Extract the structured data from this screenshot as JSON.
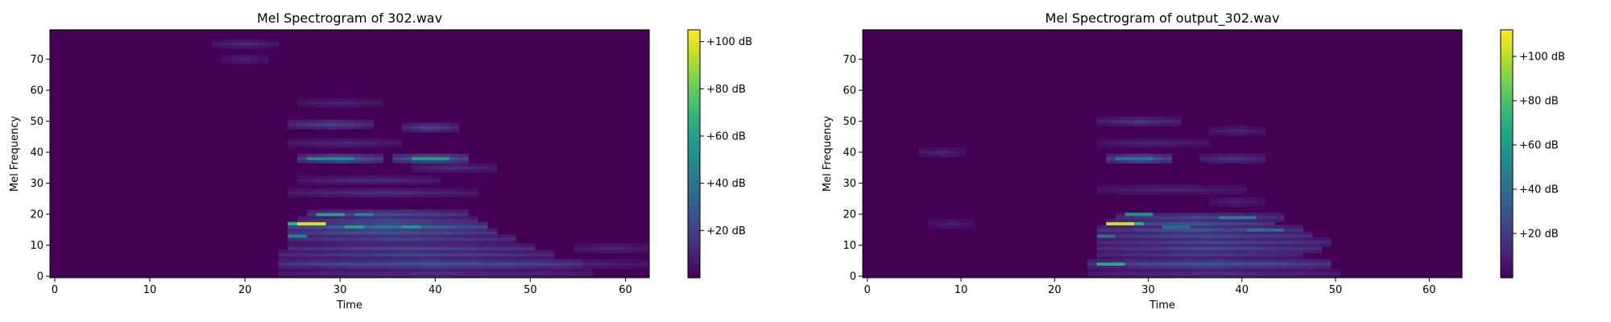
{
  "chart_data": [
    {
      "type": "heatmap",
      "title": "Mel Spectrogram of 302.wav",
      "xlabel": "Time",
      "ylabel": "Mel Frequency",
      "xlim": [
        -0.5,
        62.5
      ],
      "ylim": [
        -0.5,
        79.5
      ],
      "xticks": [
        0,
        10,
        20,
        30,
        40,
        50,
        60
      ],
      "yticks": [
        0,
        10,
        20,
        30,
        40,
        50,
        60,
        70
      ],
      "colormap": "viridis",
      "colorbar": {
        "min": 0,
        "max": 105,
        "ticks": [
          20,
          40,
          60,
          80,
          100
        ],
        "tick_labels": [
          "+20 dB",
          "+40 dB",
          "+60 dB",
          "+80 dB",
          "+100 dB"
        ]
      },
      "features": [
        {
          "t": [
            24,
            56
          ],
          "bin": 1,
          "level": 15
        },
        {
          "t": [
            24,
            55
          ],
          "bin": 4,
          "level": 30
        },
        {
          "t": [
            24,
            52
          ],
          "bin": 7,
          "level": 22
        },
        {
          "t": [
            25,
            50
          ],
          "bin": 9,
          "level": 24
        },
        {
          "t": [
            25,
            48
          ],
          "bin": 12,
          "level": 22
        },
        {
          "t": [
            25,
            46
          ],
          "bin": 14,
          "level": 28
        },
        {
          "t": [
            25,
            45
          ],
          "bin": 16,
          "level": 40
        },
        {
          "t": [
            26,
            44
          ],
          "bin": 18,
          "level": 22
        },
        {
          "t": [
            27,
            43
          ],
          "bin": 20,
          "level": 26
        },
        {
          "t": [
            26,
            34
          ],
          "bin": 38,
          "level": 35
        },
        {
          "t": [
            36,
            43
          ],
          "bin": 38,
          "level": 38
        },
        {
          "t": [
            25,
            33
          ],
          "bin": 49,
          "level": 22
        },
        {
          "t": [
            37,
            42
          ],
          "bin": 48,
          "level": 22
        },
        {
          "t": [
            25,
            44
          ],
          "bin": 27,
          "level": 14
        },
        {
          "t": [
            26,
            40
          ],
          "bin": 31,
          "level": 13
        },
        {
          "t": [
            25,
            36
          ],
          "bin": 43,
          "level": 12
        },
        {
          "t": [
            38,
            46
          ],
          "bin": 35,
          "level": 14
        },
        {
          "t": [
            26,
            34
          ],
          "bin": 56,
          "level": 10
        },
        {
          "t": [
            17,
            23
          ],
          "bin": 75,
          "level": 12
        },
        {
          "t": [
            18,
            22
          ],
          "bin": 70,
          "level": 10
        },
        {
          "t": [
            55,
            62
          ],
          "bin": 9,
          "level": 12
        },
        {
          "t": [
            52,
            62
          ],
          "bin": 4,
          "level": 10
        }
      ],
      "hotspots": [
        {
          "t": [
            26,
            28
          ],
          "bin": 17,
          "level": 100
        },
        {
          "t": [
            25,
            26
          ],
          "bin": 17,
          "level": 65
        },
        {
          "t": [
            28,
            30
          ],
          "bin": 20,
          "level": 60
        },
        {
          "t": [
            31,
            32
          ],
          "bin": 16,
          "level": 60
        },
        {
          "t": [
            37,
            38
          ],
          "bin": 16,
          "level": 55
        },
        {
          "t": [
            38,
            41
          ],
          "bin": 38,
          "level": 58
        },
        {
          "t": [
            27,
            31
          ],
          "bin": 38,
          "level": 50
        },
        {
          "t": [
            25,
            26
          ],
          "bin": 13,
          "level": 45
        },
        {
          "t": [
            32,
            33
          ],
          "bin": 20,
          "level": 48
        }
      ]
    },
    {
      "type": "heatmap",
      "title": "Mel Spectrogram of output_302.wav",
      "xlabel": "Time",
      "ylabel": "Mel Frequency",
      "xlim": [
        -0.5,
        63.5
      ],
      "ylim": [
        -0.5,
        79.5
      ],
      "xticks": [
        0,
        10,
        20,
        30,
        40,
        50,
        60
      ],
      "yticks": [
        0,
        10,
        20,
        30,
        40,
        50,
        60,
        70
      ],
      "colormap": "viridis",
      "colorbar": {
        "min": 0,
        "max": 112,
        "ticks": [
          20,
          40,
          60,
          80,
          100
        ],
        "tick_labels": [
          "+20 dB",
          "+40 dB",
          "+60 dB",
          "+80 dB",
          "+100 dB"
        ]
      },
      "features": [
        {
          "t": [
            24,
            50
          ],
          "bin": 1,
          "level": 16
        },
        {
          "t": [
            24,
            49
          ],
          "bin": 4,
          "level": 32
        },
        {
          "t": [
            25,
            46
          ],
          "bin": 7,
          "level": 20
        },
        {
          "t": [
            25,
            48
          ],
          "bin": 9,
          "level": 26
        },
        {
          "t": [
            25,
            49
          ],
          "bin": 11,
          "level": 24
        },
        {
          "t": [
            25,
            47
          ],
          "bin": 13,
          "level": 26
        },
        {
          "t": [
            25,
            46
          ],
          "bin": 15,
          "level": 30
        },
        {
          "t": [
            26,
            43
          ],
          "bin": 17,
          "level": 30
        },
        {
          "t": [
            27,
            44
          ],
          "bin": 19,
          "level": 24
        },
        {
          "t": [
            26,
            32
          ],
          "bin": 38,
          "level": 38
        },
        {
          "t": [
            36,
            42
          ],
          "bin": 38,
          "level": 18
        },
        {
          "t": [
            25,
            33
          ],
          "bin": 50,
          "level": 18
        },
        {
          "t": [
            37,
            42
          ],
          "bin": 47,
          "level": 12
        },
        {
          "t": [
            25,
            40
          ],
          "bin": 28,
          "level": 12
        },
        {
          "t": [
            25,
            36
          ],
          "bin": 43,
          "level": 11
        },
        {
          "t": [
            6,
            10
          ],
          "bin": 40,
          "level": 12
        },
        {
          "t": [
            7,
            11
          ],
          "bin": 17,
          "level": 10
        },
        {
          "t": [
            37,
            42
          ],
          "bin": 24,
          "level": 11
        }
      ],
      "hotspots": [
        {
          "t": [
            26,
            28
          ],
          "bin": 17,
          "level": 104
        },
        {
          "t": [
            28,
            29
          ],
          "bin": 17,
          "level": 70
        },
        {
          "t": [
            25,
            27
          ],
          "bin": 4,
          "level": 68
        },
        {
          "t": [
            28,
            30
          ],
          "bin": 20,
          "level": 55
        },
        {
          "t": [
            27,
            30
          ],
          "bin": 38,
          "level": 42
        },
        {
          "t": [
            38,
            41
          ],
          "bin": 19,
          "level": 48
        },
        {
          "t": [
            41,
            44
          ],
          "bin": 15,
          "level": 40
        },
        {
          "t": [
            25,
            26
          ],
          "bin": 13,
          "level": 42
        },
        {
          "t": [
            32,
            34
          ],
          "bin": 16,
          "level": 38
        }
      ]
    }
  ]
}
